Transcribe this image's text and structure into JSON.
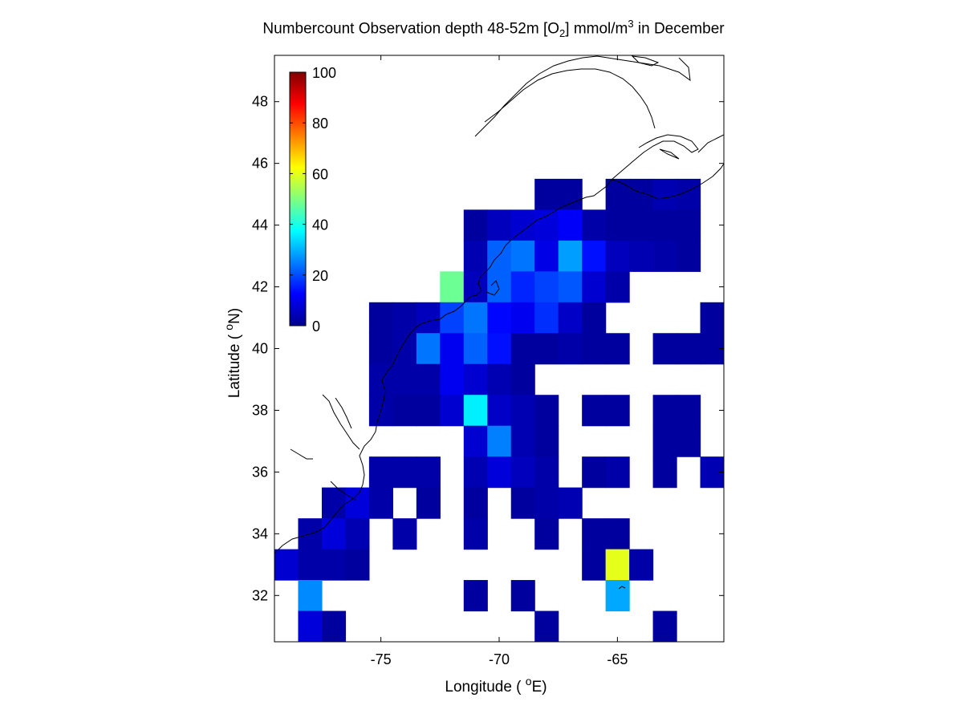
{
  "title": {
    "prefix": "Numbercount Observation depth 48-52m [O",
    "sub": "2",
    "middle": "] mmol/m",
    "sup": "3",
    "suffix": " in December"
  },
  "axes": {
    "xlabel_prefix": "Longitude ( ",
    "xlabel_sup": "o",
    "xlabel_suffix": "E)",
    "ylabel_prefix": "Latitude ( ",
    "ylabel_sup": "o",
    "ylabel_suffix": "N)",
    "xlim": [
      -79.5,
      -60.5
    ],
    "ylim": [
      30.5,
      49.5
    ],
    "xticks": [
      -75,
      -70,
      -65
    ],
    "xtick_labels": [
      "-75",
      "-70",
      "-65"
    ],
    "yticks": [
      32,
      34,
      36,
      38,
      40,
      42,
      44,
      46,
      48
    ],
    "ytick_labels": [
      "32",
      "34",
      "36",
      "38",
      "40",
      "42",
      "44",
      "46",
      "48"
    ]
  },
  "colorbar": {
    "colormap": "jet",
    "range": [
      0,
      100
    ],
    "ticks": [
      0,
      20,
      40,
      60,
      80,
      100
    ],
    "tick_labels": [
      "0",
      "20",
      "40",
      "60",
      "80",
      "100"
    ]
  },
  "chart_data": {
    "type": "heatmap",
    "cell_size_deg": 1,
    "cells": [
      {
        "lon": -68,
        "lat": 45,
        "v": 3
      },
      {
        "lon": -67,
        "lat": 45,
        "v": 3
      },
      {
        "lon": -65,
        "lat": 45,
        "v": 3
      },
      {
        "lon": -64,
        "lat": 45,
        "v": 3
      },
      {
        "lon": -63,
        "lat": 45,
        "v": 5
      },
      {
        "lon": -62,
        "lat": 45,
        "v": 4
      },
      {
        "lon": -71,
        "lat": 44,
        "v": 3
      },
      {
        "lon": -70,
        "lat": 44,
        "v": 6
      },
      {
        "lon": -69,
        "lat": 44,
        "v": 8
      },
      {
        "lon": -68,
        "lat": 44,
        "v": 9
      },
      {
        "lon": -67,
        "lat": 44,
        "v": 12
      },
      {
        "lon": -66,
        "lat": 44,
        "v": 4
      },
      {
        "lon": -65,
        "lat": 44,
        "v": 3
      },
      {
        "lon": -64,
        "lat": 44,
        "v": 3
      },
      {
        "lon": -63,
        "lat": 44,
        "v": 3
      },
      {
        "lon": -62,
        "lat": 44,
        "v": 3
      },
      {
        "lon": -71,
        "lat": 43,
        "v": 5
      },
      {
        "lon": -70,
        "lat": 43,
        "v": 22
      },
      {
        "lon": -69,
        "lat": 43,
        "v": 24
      },
      {
        "lon": -68,
        "lat": 43,
        "v": 10
      },
      {
        "lon": -67,
        "lat": 43,
        "v": 28
      },
      {
        "lon": -66,
        "lat": 43,
        "v": 14
      },
      {
        "lon": -65,
        "lat": 43,
        "v": 6
      },
      {
        "lon": -64,
        "lat": 43,
        "v": 5
      },
      {
        "lon": -63,
        "lat": 43,
        "v": 4
      },
      {
        "lon": -62,
        "lat": 43,
        "v": 3
      },
      {
        "lon": -72,
        "lat": 42,
        "v": 48
      },
      {
        "lon": -71,
        "lat": 42,
        "v": 6
      },
      {
        "lon": -70,
        "lat": 42,
        "v": 22
      },
      {
        "lon": -69,
        "lat": 42,
        "v": 16
      },
      {
        "lon": -68,
        "lat": 42,
        "v": 19
      },
      {
        "lon": -67,
        "lat": 42,
        "v": 21
      },
      {
        "lon": -66,
        "lat": 42,
        "v": 8
      },
      {
        "lon": -65,
        "lat": 42,
        "v": 4
      },
      {
        "lon": -75,
        "lat": 41,
        "v": 3
      },
      {
        "lon": -74,
        "lat": 41,
        "v": 4
      },
      {
        "lon": -73,
        "lat": 41,
        "v": 6
      },
      {
        "lon": -72,
        "lat": 41,
        "v": 19
      },
      {
        "lon": -71,
        "lat": 41,
        "v": 24
      },
      {
        "lon": -70,
        "lat": 41,
        "v": 13
      },
      {
        "lon": -69,
        "lat": 41,
        "v": 11
      },
      {
        "lon": -68,
        "lat": 41,
        "v": 17
      },
      {
        "lon": -67,
        "lat": 41,
        "v": 7
      },
      {
        "lon": -66,
        "lat": 41,
        "v": 3
      },
      {
        "lon": -61,
        "lat": 41,
        "v": 3
      },
      {
        "lon": -75,
        "lat": 40,
        "v": 3
      },
      {
        "lon": -74,
        "lat": 40,
        "v": 4
      },
      {
        "lon": -73,
        "lat": 40,
        "v": 24
      },
      {
        "lon": -72,
        "lat": 40,
        "v": 11
      },
      {
        "lon": -71,
        "lat": 40,
        "v": 22
      },
      {
        "lon": -70,
        "lat": 40,
        "v": 14
      },
      {
        "lon": -69,
        "lat": 40,
        "v": 3
      },
      {
        "lon": -68,
        "lat": 40,
        "v": 3
      },
      {
        "lon": -67,
        "lat": 40,
        "v": 4
      },
      {
        "lon": -66,
        "lat": 40,
        "v": 3
      },
      {
        "lon": -65,
        "lat": 40,
        "v": 3
      },
      {
        "lon": -63,
        "lat": 40,
        "v": 3
      },
      {
        "lon": -62,
        "lat": 40,
        "v": 3
      },
      {
        "lon": -61,
        "lat": 40,
        "v": 3
      },
      {
        "lon": -75,
        "lat": 39,
        "v": 4
      },
      {
        "lon": -74,
        "lat": 39,
        "v": 4
      },
      {
        "lon": -73,
        "lat": 39,
        "v": 4
      },
      {
        "lon": -72,
        "lat": 39,
        "v": 11
      },
      {
        "lon": -71,
        "lat": 39,
        "v": 8
      },
      {
        "lon": -70,
        "lat": 39,
        "v": 5
      },
      {
        "lon": -69,
        "lat": 39,
        "v": 3
      },
      {
        "lon": -75,
        "lat": 38,
        "v": 4
      },
      {
        "lon": -74,
        "lat": 38,
        "v": 3
      },
      {
        "lon": -73,
        "lat": 38,
        "v": 3
      },
      {
        "lon": -72,
        "lat": 38,
        "v": 8
      },
      {
        "lon": -71,
        "lat": 38,
        "v": 36
      },
      {
        "lon": -70,
        "lat": 38,
        "v": 7
      },
      {
        "lon": -69,
        "lat": 38,
        "v": 5
      },
      {
        "lon": -68,
        "lat": 38,
        "v": 3
      },
      {
        "lon": -66,
        "lat": 38,
        "v": 3
      },
      {
        "lon": -65,
        "lat": 38,
        "v": 3
      },
      {
        "lon": -63,
        "lat": 38,
        "v": 3
      },
      {
        "lon": -62,
        "lat": 38,
        "v": 3
      },
      {
        "lon": -71,
        "lat": 37,
        "v": 8
      },
      {
        "lon": -70,
        "lat": 37,
        "v": 25
      },
      {
        "lon": -69,
        "lat": 37,
        "v": 5
      },
      {
        "lon": -68,
        "lat": 37,
        "v": 3
      },
      {
        "lon": -63,
        "lat": 37,
        "v": 3
      },
      {
        "lon": -62,
        "lat": 37,
        "v": 3
      },
      {
        "lon": -75,
        "lat": 36,
        "v": 4
      },
      {
        "lon": -74,
        "lat": 36,
        "v": 4
      },
      {
        "lon": -73,
        "lat": 36,
        "v": 4
      },
      {
        "lon": -71,
        "lat": 36,
        "v": 5
      },
      {
        "lon": -70,
        "lat": 36,
        "v": 9
      },
      {
        "lon": -69,
        "lat": 36,
        "v": 6
      },
      {
        "lon": -68,
        "lat": 36,
        "v": 4
      },
      {
        "lon": -66,
        "lat": 36,
        "v": 3
      },
      {
        "lon": -65,
        "lat": 36,
        "v": 4
      },
      {
        "lon": -63,
        "lat": 36,
        "v": 3
      },
      {
        "lon": -61,
        "lat": 36,
        "v": 5
      },
      {
        "lon": -77,
        "lat": 35,
        "v": 4
      },
      {
        "lon": -76,
        "lat": 35,
        "v": 9
      },
      {
        "lon": -75,
        "lat": 35,
        "v": 4
      },
      {
        "lon": -73,
        "lat": 35,
        "v": 3
      },
      {
        "lon": -71,
        "lat": 35,
        "v": 3
      },
      {
        "lon": -69,
        "lat": 35,
        "v": 3
      },
      {
        "lon": -68,
        "lat": 35,
        "v": 4
      },
      {
        "lon": -67,
        "lat": 35,
        "v": 5
      },
      {
        "lon": -78,
        "lat": 34,
        "v": 4
      },
      {
        "lon": -77,
        "lat": 34,
        "v": 9
      },
      {
        "lon": -76,
        "lat": 34,
        "v": 5
      },
      {
        "lon": -74,
        "lat": 34,
        "v": 4
      },
      {
        "lon": -71,
        "lat": 34,
        "v": 4
      },
      {
        "lon": -68,
        "lat": 34,
        "v": 3
      },
      {
        "lon": -66,
        "lat": 34,
        "v": 3
      },
      {
        "lon": -65,
        "lat": 34,
        "v": 3
      },
      {
        "lon": -79,
        "lat": 33,
        "v": 8
      },
      {
        "lon": -78,
        "lat": 33,
        "v": 4
      },
      {
        "lon": -77,
        "lat": 33,
        "v": 4
      },
      {
        "lon": -76,
        "lat": 33,
        "v": 3
      },
      {
        "lon": -66,
        "lat": 33,
        "v": 3
      },
      {
        "lon": -65,
        "lat": 33,
        "v": 60
      },
      {
        "lon": -64,
        "lat": 33,
        "v": 4
      },
      {
        "lon": -78,
        "lat": 32,
        "v": 26
      },
      {
        "lon": -71,
        "lat": 32,
        "v": 3
      },
      {
        "lon": -69,
        "lat": 32,
        "v": 3
      },
      {
        "lon": -65,
        "lat": 32,
        "v": 29
      },
      {
        "lon": -78,
        "lat": 31,
        "v": 9
      },
      {
        "lon": -77,
        "lat": 31,
        "v": 3
      },
      {
        "lon": -68,
        "lat": 31,
        "v": 3
      },
      {
        "lon": -63,
        "lat": 31,
        "v": 3
      }
    ]
  }
}
